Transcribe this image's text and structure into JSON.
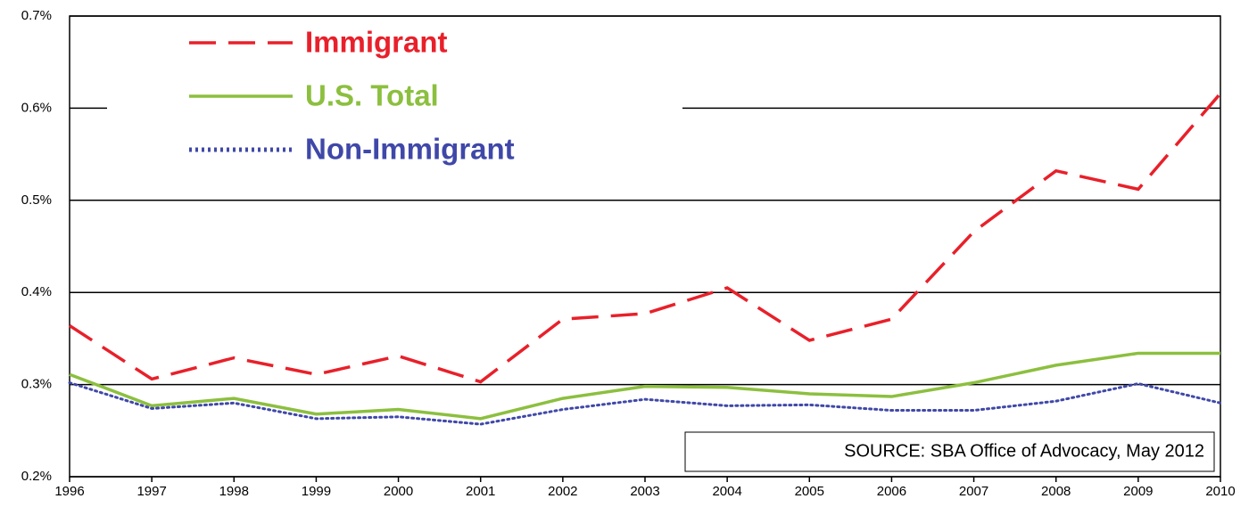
{
  "chart_data": {
    "type": "line",
    "categories": [
      "1996",
      "1997",
      "1998",
      "1999",
      "2000",
      "2001",
      "2002",
      "2003",
      "2004",
      "2005",
      "2006",
      "2007",
      "2008",
      "2009",
      "2010"
    ],
    "series": [
      {
        "name": "Immigrant",
        "color": "#e8202a",
        "style": "dashed",
        "values": [
          0.364,
          0.306,
          0.329,
          0.311,
          0.331,
          0.303,
          0.371,
          0.377,
          0.405,
          0.348,
          0.371,
          0.466,
          0.532,
          0.512,
          0.616
        ]
      },
      {
        "name": "U.S. Total",
        "color": "#8cbf3f",
        "style": "solid",
        "values": [
          0.311,
          0.277,
          0.285,
          0.268,
          0.273,
          0.263,
          0.285,
          0.298,
          0.297,
          0.29,
          0.287,
          0.302,
          0.321,
          0.334,
          0.334
        ]
      },
      {
        "name": "Non-Immigrant",
        "color": "#3f48a8",
        "style": "dotted",
        "values": [
          0.302,
          0.274,
          0.28,
          0.263,
          0.265,
          0.257,
          0.273,
          0.284,
          0.277,
          0.278,
          0.272,
          0.272,
          0.282,
          0.301,
          0.28
        ]
      }
    ],
    "ylim": [
      0.2,
      0.7
    ],
    "yticks": [
      {
        "value": 0.2,
        "label": "0.2%"
      },
      {
        "value": 0.3,
        "label": "0.3%"
      },
      {
        "value": 0.4,
        "label": "0.4%"
      },
      {
        "value": 0.5,
        "label": "0.5%"
      },
      {
        "value": 0.6,
        "label": "0.6%"
      },
      {
        "value": 0.7,
        "label": "0.7%"
      }
    ],
    "grid": true,
    "legend": "top-left",
    "annotation": "SOURCE: SBA Office of Advocacy, May 2012"
  }
}
